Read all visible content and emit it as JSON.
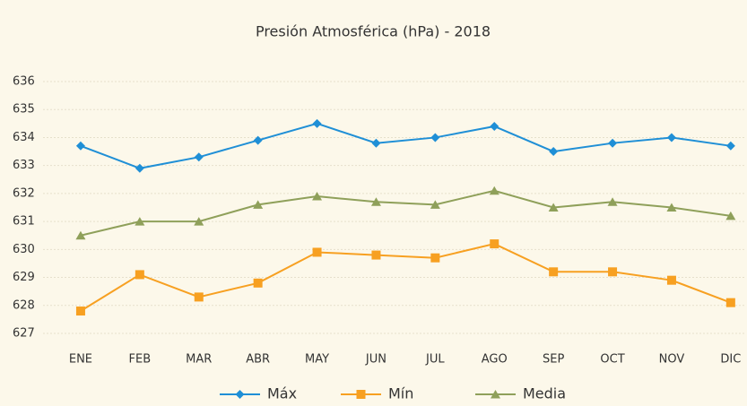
{
  "chart_data": {
    "type": "line",
    "title": "Presión Atmosférica (hPa) - 2018",
    "categories": [
      "ENE",
      "FEB",
      "MAR",
      "ABR",
      "MAY",
      "JUN",
      "JUL",
      "AGO",
      "SEP",
      "OCT",
      "NOV",
      "DIC"
    ],
    "series": [
      {
        "name": "Máx",
        "color": "#1f8fd6",
        "marker": "diamond",
        "values": [
          633.7,
          632.9,
          633.3,
          633.9,
          634.5,
          633.8,
          634.0,
          634.4,
          633.5,
          633.8,
          634.0,
          633.7
        ]
      },
      {
        "name": "Mín",
        "color": "#f7a021",
        "marker": "square",
        "values": [
          627.8,
          629.1,
          628.3,
          628.8,
          629.9,
          629.8,
          629.7,
          630.2,
          629.2,
          629.2,
          628.9,
          628.1
        ]
      },
      {
        "name": "Media",
        "color": "#8fa05a",
        "marker": "triangle",
        "values": [
          630.5,
          631.0,
          631.0,
          631.6,
          631.9,
          631.7,
          631.6,
          632.1,
          631.5,
          631.7,
          631.5,
          631.2
        ]
      }
    ],
    "ylim": [
      627,
      636
    ],
    "yticks": [
      627,
      628,
      629,
      630,
      631,
      632,
      633,
      634,
      635,
      636
    ],
    "grid": true,
    "legend": "bottom"
  }
}
